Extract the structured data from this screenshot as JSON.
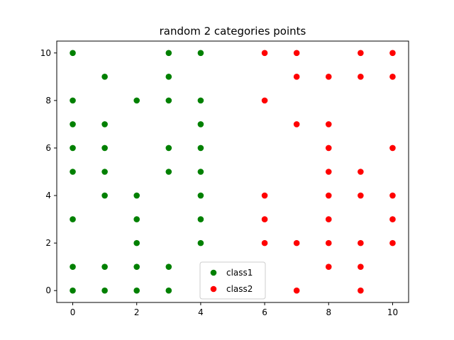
{
  "chart_data": {
    "type": "scatter",
    "title": "random 2 categories points",
    "xlabel": "",
    "ylabel": "",
    "xlim": [
      -0.5,
      10.5
    ],
    "ylim": [
      -0.5,
      10.5
    ],
    "xticks": [
      0,
      2,
      4,
      6,
      8,
      10
    ],
    "yticks": [
      0,
      2,
      4,
      6,
      8,
      10
    ],
    "grid": false,
    "legend_position": "bottom-center",
    "series": [
      {
        "name": "class1",
        "color": "#008000",
        "points": [
          [
            0,
            10
          ],
          [
            0,
            8
          ],
          [
            0,
            7
          ],
          [
            0,
            6
          ],
          [
            0,
            5
          ],
          [
            0,
            3
          ],
          [
            0,
            1
          ],
          [
            0,
            0
          ],
          [
            1,
            9
          ],
          [
            1,
            7
          ],
          [
            1,
            6
          ],
          [
            1,
            5
          ],
          [
            1,
            4
          ],
          [
            1,
            1
          ],
          [
            1,
            0
          ],
          [
            2,
            8
          ],
          [
            2,
            4
          ],
          [
            2,
            3
          ],
          [
            2,
            2
          ],
          [
            2,
            1
          ],
          [
            2,
            0
          ],
          [
            3,
            10
          ],
          [
            3,
            9
          ],
          [
            3,
            8
          ],
          [
            3,
            6
          ],
          [
            3,
            5
          ],
          [
            3,
            1
          ],
          [
            3,
            0
          ],
          [
            4,
            10
          ],
          [
            4,
            8
          ],
          [
            4,
            7
          ],
          [
            4,
            6
          ],
          [
            4,
            5
          ],
          [
            4,
            4
          ],
          [
            4,
            3
          ],
          [
            4,
            2
          ]
        ]
      },
      {
        "name": "class2",
        "color": "#ff0000",
        "points": [
          [
            6,
            10
          ],
          [
            6,
            8
          ],
          [
            6,
            4
          ],
          [
            6,
            3
          ],
          [
            6,
            2
          ],
          [
            7,
            10
          ],
          [
            7,
            9
          ],
          [
            7,
            7
          ],
          [
            7,
            2
          ],
          [
            7,
            0
          ],
          [
            8,
            9
          ],
          [
            8,
            7
          ],
          [
            8,
            6
          ],
          [
            8,
            5
          ],
          [
            8,
            4
          ],
          [
            8,
            3
          ],
          [
            8,
            2
          ],
          [
            8,
            1
          ],
          [
            9,
            10
          ],
          [
            9,
            9
          ],
          [
            9,
            5
          ],
          [
            9,
            4
          ],
          [
            9,
            2
          ],
          [
            9,
            1
          ],
          [
            9,
            0
          ],
          [
            10,
            10
          ],
          [
            10,
            9
          ],
          [
            10,
            6
          ],
          [
            10,
            4
          ],
          [
            10,
            3
          ],
          [
            10,
            2
          ]
        ]
      }
    ]
  }
}
